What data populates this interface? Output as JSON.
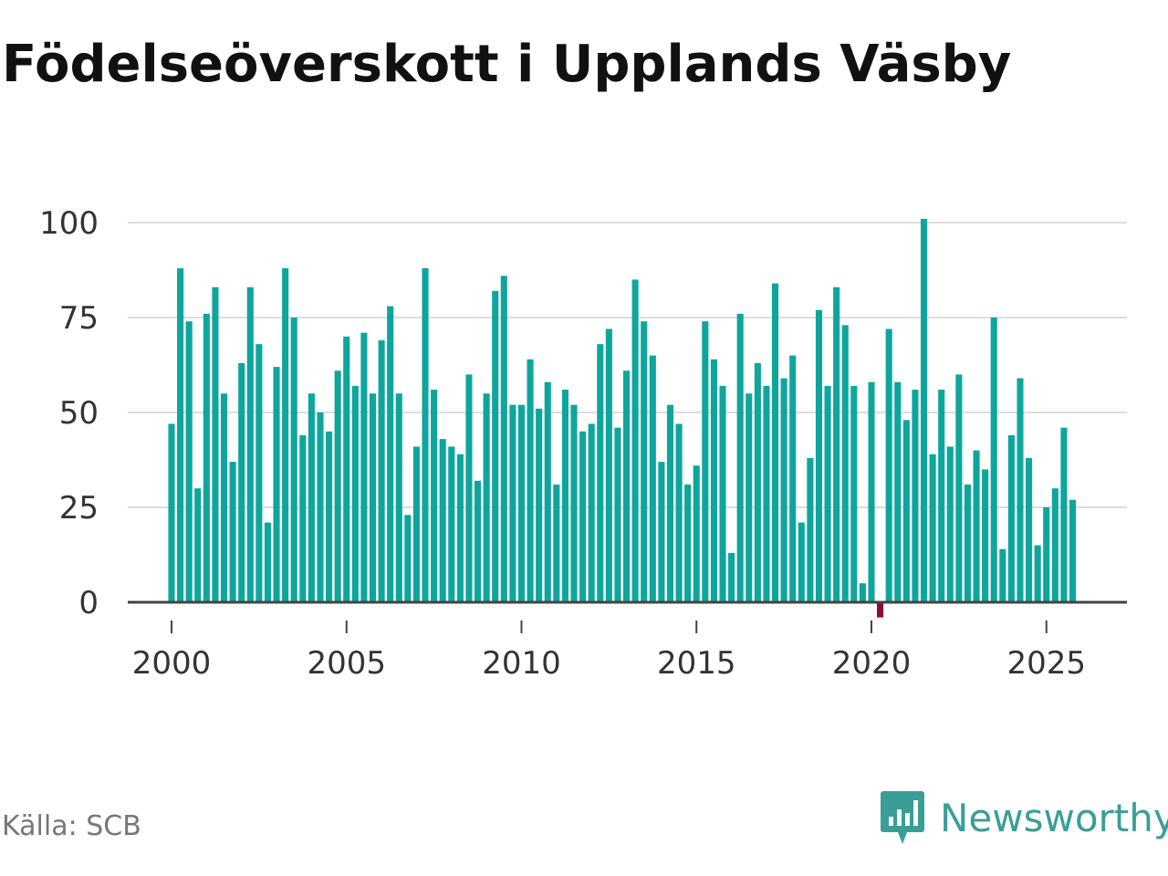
{
  "title": "Födelseöverskott i Upplands Väsby",
  "source": "Källa: SCB",
  "brand": {
    "name": "Newsworthy",
    "icon": "newsworthy-logo-icon"
  },
  "colors": {
    "positive": "#0ea69c",
    "negative": "#8b0a3a",
    "brand": "#3a9e96",
    "grid": "#dddddd",
    "axis": "#444444"
  },
  "chart_data": {
    "type": "bar",
    "title": "Födelseöverskott i Upplands Väsby",
    "xlabel": "",
    "ylabel": "",
    "x_start_year": 2000,
    "x_start_quarter": 1,
    "interval": "quarter",
    "xlim": [
      1999.75,
      2026.5
    ],
    "xticks": [
      2000,
      2005,
      2010,
      2015,
      2020,
      2025
    ],
    "ylim": [
      0,
      104
    ],
    "yticks": [
      0,
      25,
      50,
      75,
      100
    ],
    "grid": true,
    "values": [
      47,
      88,
      74,
      30,
      76,
      83,
      55,
      37,
      63,
      83,
      68,
      21,
      62,
      88,
      75,
      44,
      55,
      50,
      45,
      61,
      70,
      57,
      71,
      55,
      69,
      78,
      55,
      23,
      41,
      88,
      56,
      43,
      41,
      39,
      60,
      32,
      55,
      82,
      86,
      52,
      52,
      64,
      51,
      58,
      31,
      56,
      52,
      45,
      47,
      68,
      72,
      46,
      61,
      85,
      74,
      65,
      37,
      52,
      47,
      31,
      36,
      74,
      64,
      57,
      13,
      76,
      55,
      63,
      57,
      84,
      59,
      65,
      21,
      38,
      77,
      57,
      83,
      73,
      57,
      5,
      58,
      -4,
      72,
      58,
      48,
      56,
      101,
      39,
      56,
      41,
      60,
      31,
      40,
      35,
      75,
      14,
      44,
      59,
      38,
      15,
      25,
      30,
      46,
      27
    ]
  }
}
